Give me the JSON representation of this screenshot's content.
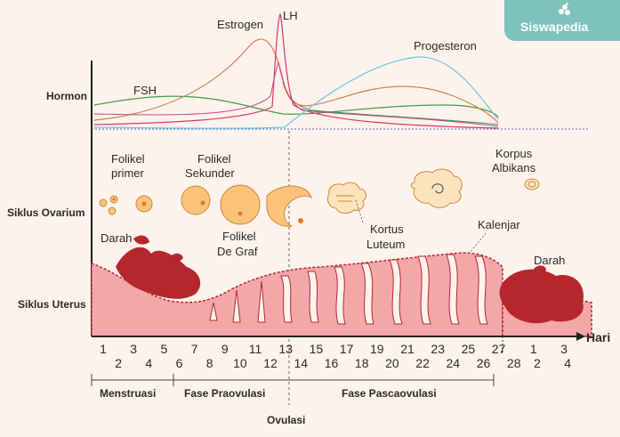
{
  "brand": {
    "name": "Siswapedia",
    "color": "#7fc1bd"
  },
  "rows": {
    "hormone": "Hormon",
    "ovarian": "Siklus Ovarium",
    "uterine": "Siklus Uterus"
  },
  "hormones": {
    "fsh": "FSH",
    "estrogen": "Estrogen",
    "lh": "LH",
    "progesterone": "Progesteron"
  },
  "ovary": {
    "primary_1": "Folikel",
    "primary_2": "primer",
    "secondary_1": "Folikel",
    "secondary_2": "Sekunder",
    "graaf_1": "Folikel",
    "graaf_2": "De Graf",
    "corpus_luteum_1": "Kortus",
    "corpus_luteum_2": "Luteum",
    "corpus_albicans_1": "Korpus",
    "corpus_albicans_2": "Albikans"
  },
  "uterus": {
    "blood_left": "Darah",
    "blood_right": "Darah",
    "gland": "Kalenjar"
  },
  "axis": {
    "unit": "Hari",
    "days_top": [
      "1",
      "3",
      "5",
      "7",
      "9",
      "11",
      "13",
      "15",
      "17",
      "19",
      "21",
      "23",
      "25",
      "27",
      "1",
      "3"
    ],
    "days_bottom": [
      "2",
      "4",
      "6",
      "8",
      "10",
      "12",
      "14",
      "16",
      "18",
      "20",
      "22",
      "24",
      "26",
      "28",
      "2",
      "4"
    ]
  },
  "phases": {
    "menstruation": "Menstruasi",
    "preovulation": "Fase Praovulasi",
    "postovulation": "Fase Pascaovulasi",
    "ovulation": "Ovulasi"
  },
  "colors": {
    "fsh": "#3f9b4a",
    "estrogen": "#d3804a",
    "lh": "#d9346b",
    "progesterone": "#6ec3e0",
    "follicle": "#fbc27a",
    "tissue": "#f4a7a9",
    "blood": "#b5262d"
  }
}
